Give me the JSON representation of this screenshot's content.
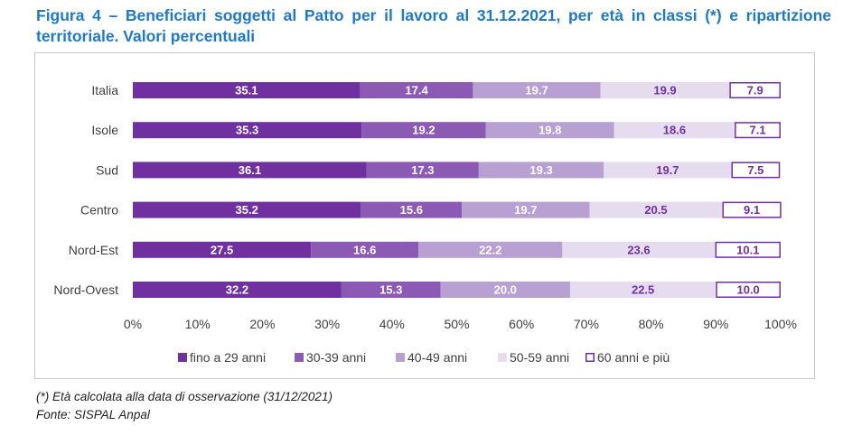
{
  "title": "Figura 4 – Beneficiari soggetti al Patto per il lavoro al 31.12.2021, per età in classi (*) e ripartizione territoriale. Valori percentuali",
  "note": "(*) Età calcolata alla data di osservazione (31/12/2021)",
  "source": "Fonte: SISPAL Anpal",
  "chart_data": {
    "type": "bar",
    "orientation": "horizontal",
    "stacked": true,
    "categories": [
      "Italia",
      "Isole",
      "Sud",
      "Centro",
      "Nord-Est",
      "Nord-Ovest"
    ],
    "series": [
      {
        "name": "fino a 29 anni",
        "color": "#7030a0",
        "label_color": "#ffffff",
        "values": [
          35.1,
          35.3,
          36.1,
          35.2,
          27.5,
          32.2
        ],
        "labels": [
          "35.1",
          "35.3",
          "36.1",
          "35.2",
          "27.5",
          "32.2"
        ]
      },
      {
        "name": "30-39 anni",
        "color": "#8c5ab4",
        "label_color": "#ffffff",
        "values": [
          17.4,
          19.2,
          17.3,
          15.6,
          16.6,
          15.3
        ],
        "labels": [
          "17.4",
          "19.2",
          "17.3",
          "15.6",
          "16.6",
          "15.3"
        ]
      },
      {
        "name": "40-49 anni",
        "color": "#b9a0d2",
        "label_color": "#ffffff",
        "values": [
          19.7,
          19.8,
          19.3,
          19.7,
          22.2,
          20.0
        ],
        "labels": [
          "19.7",
          "19.8",
          "19.3",
          "19.7",
          "22.2",
          "20.0"
        ]
      },
      {
        "name": "50-59 anni",
        "color": "#e6dcf0",
        "label_color": "#7030a0",
        "values": [
          19.9,
          18.6,
          19.7,
          20.5,
          23.6,
          22.5
        ],
        "labels": [
          "19.9",
          "18.6",
          "19.7",
          "20.5",
          "23.6",
          "22.5"
        ]
      },
      {
        "name": "60 anni e più",
        "color": "#ffffff",
        "border": "#7030a0",
        "label_color": "#7030a0",
        "values": [
          7.9,
          7.1,
          7.5,
          9.1,
          10.1,
          10.0
        ],
        "labels": [
          "7.9",
          "7.1",
          "7.5",
          "9.1",
          "10.1",
          "10.0"
        ]
      }
    ],
    "xlim": [
      0,
      100
    ],
    "x_ticks": [
      "0%",
      "10%",
      "20%",
      "30%",
      "40%",
      "50%",
      "60%",
      "70%",
      "80%",
      "90%",
      "100%"
    ],
    "legend_position": "bottom",
    "grid": false
  }
}
